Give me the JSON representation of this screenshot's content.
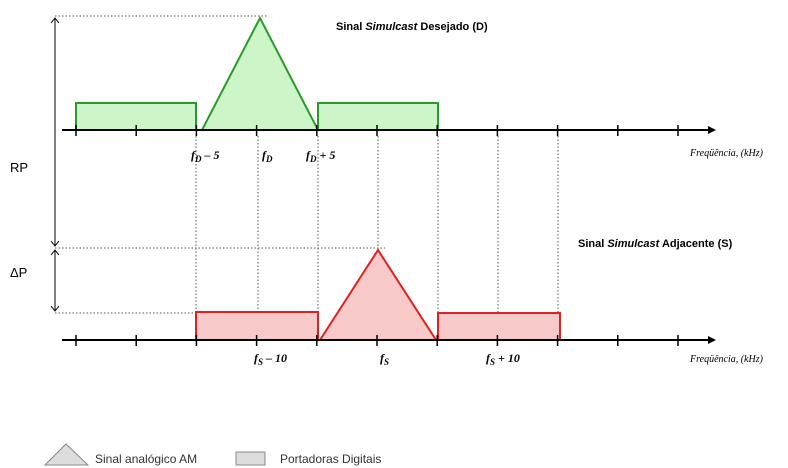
{
  "top_title": {
    "pre": "Sinal ",
    "em": "Simulcast",
    "post": "  Desejado (D)"
  },
  "bottom_title": {
    "pre": "Sinal ",
    "em": "Simulcast",
    "post": "  Adjacente (S)"
  },
  "axis_label": "Freqüência, (kHz)",
  "side_labels": [
    "RP",
    "ΔP"
  ],
  "top_freqs": [
    {
      "base": "f",
      "sub": "D",
      "suffix": " – 5"
    },
    {
      "base": "f",
      "sub": "D",
      "suffix": ""
    },
    {
      "base": "f",
      "sub": "D",
      "suffix": " + 5"
    }
  ],
  "bottom_freqs": [
    {
      "base": "f",
      "sub": "S",
      "suffix": " – 10"
    },
    {
      "base": "f",
      "sub": "S",
      "suffix": ""
    },
    {
      "base": "f",
      "sub": "S",
      "suffix": " + 10"
    }
  ],
  "legend": [
    "Sinal analógico AM",
    "Portadoras Digitais"
  ]
}
